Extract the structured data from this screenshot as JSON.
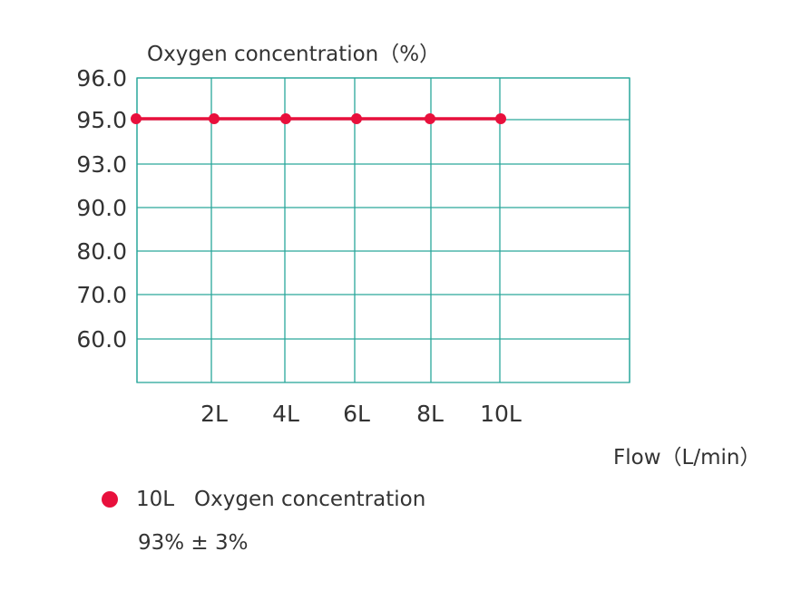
{
  "chart_data": {
    "type": "line",
    "ylabel": "Oxygen concentration（%）",
    "xlabel": "Flow（L/min）",
    "y_ticks": [
      "96.0",
      "95.0",
      "93.0",
      "90.0",
      "80.0",
      "70.0",
      "60.0"
    ],
    "x_ticks": [
      "2L",
      "4L",
      "6L",
      "8L",
      "10L"
    ],
    "series": [
      {
        "x": [
          "0L",
          "2L",
          "4L",
          "6L",
          "8L",
          "10L"
        ],
        "values": [
          95.0,
          95.0,
          95.0,
          95.0,
          95.0,
          95.0
        ],
        "color": "#e8103c"
      }
    ],
    "grid": true,
    "grid_color": "#2aa79b",
    "legend": {
      "label": "10L   Oxygen concentration",
      "note": "93% ± 3%",
      "placement": "bottom-left"
    }
  }
}
